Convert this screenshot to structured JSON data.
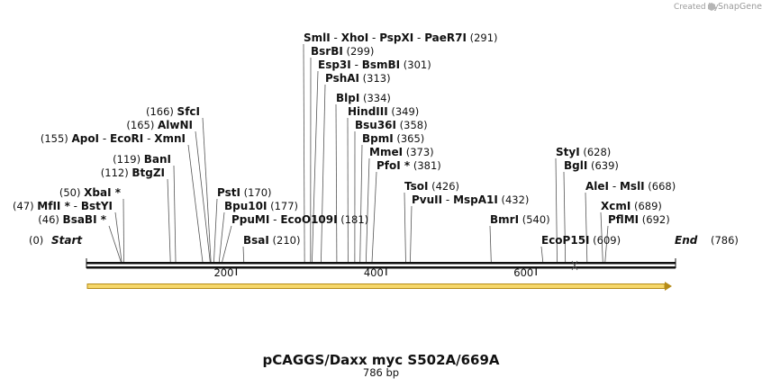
{
  "credit": {
    "prefix": "Created by",
    "brand": "SnapGene"
  },
  "plasmid": {
    "name": "pCAGGS/Daxx myc S502A/669A",
    "length": "786 bp",
    "total_bp": 786
  },
  "ruler": {
    "ticks": [
      200,
      400,
      600
    ]
  },
  "ends": {
    "start_label": "Start",
    "start_pos": "(0)",
    "end_label": "End",
    "end_pos": "(786)"
  },
  "sites": [
    {
      "names": [
        "SmlI",
        "XhoI",
        "PspXI",
        "PaeR7I"
      ],
      "position": "(291)",
      "bp": 291
    },
    {
      "names": [
        "BsrBI"
      ],
      "position": "(299)",
      "bp": 299
    },
    {
      "names": [
        "Esp3I",
        "BsmBI"
      ],
      "position": "(301)",
      "bp": 301
    },
    {
      "names": [
        "PshAI"
      ],
      "position": "(313)",
      "bp": 313
    },
    {
      "names": [
        "BlpI"
      ],
      "position": "(334)",
      "bp": 334
    },
    {
      "names": [
        "HindIII"
      ],
      "position": "(349)",
      "bp": 349
    },
    {
      "names": [
        "Bsu36I"
      ],
      "position": "(358)",
      "bp": 358
    },
    {
      "names": [
        "BpmI"
      ],
      "position": "(365)",
      "bp": 365
    },
    {
      "names": [
        "MmeI"
      ],
      "position": "(373)",
      "bp": 373
    },
    {
      "names": [
        "PfoI *"
      ],
      "position": "(381)",
      "bp": 381
    },
    {
      "names": [
        "SfcI"
      ],
      "position": "(166)",
      "bp": 166
    },
    {
      "names": [
        "AlwNI"
      ],
      "position": "(165)",
      "bp": 165
    },
    {
      "names": [
        "ApoI",
        "EcoRI",
        "XmnI"
      ],
      "position": "(155)",
      "bp": 155
    },
    {
      "names": [
        "BanI"
      ],
      "position": "(119)",
      "bp": 119
    },
    {
      "names": [
        "BtgZI"
      ],
      "position": "(112)",
      "bp": 112
    },
    {
      "names": [
        "XbaI *"
      ],
      "position": "(50)",
      "bp": 50
    },
    {
      "names": [
        "MfII *",
        "BstYI"
      ],
      "position": "(47)",
      "bp": 47
    },
    {
      "names": [
        "BsaBI *"
      ],
      "position": "(46)",
      "bp": 46
    },
    {
      "names": [
        "PstI"
      ],
      "position": "(170)",
      "bp": 170
    },
    {
      "names": [
        "Bpu10I"
      ],
      "position": "(177)",
      "bp": 177
    },
    {
      "names": [
        "PpuMI",
        "EcoO109I"
      ],
      "position": "(181)",
      "bp": 181
    },
    {
      "names": [
        "BsaI"
      ],
      "position": "(210)",
      "bp": 210
    },
    {
      "names": [
        "TsoI"
      ],
      "position": "(426)",
      "bp": 426
    },
    {
      "names": [
        "PvuII",
        "MspA1I"
      ],
      "position": "(432)",
      "bp": 432
    },
    {
      "names": [
        "BmrI"
      ],
      "position": "(540)",
      "bp": 540
    },
    {
      "names": [
        "EcoP15I"
      ],
      "position": "(609)",
      "bp": 609
    },
    {
      "names": [
        "StyI"
      ],
      "position": "(628)",
      "bp": 628
    },
    {
      "names": [
        "BglI"
      ],
      "position": "(639)",
      "bp": 639
    },
    {
      "names": [
        "AleI",
        "MslI"
      ],
      "position": "(668)",
      "bp": 668
    },
    {
      "names": [
        "XcmI"
      ],
      "position": "(689)",
      "bp": 689
    },
    {
      "names": [
        "PflMI"
      ],
      "position": "(692)",
      "bp": 692
    }
  ]
}
